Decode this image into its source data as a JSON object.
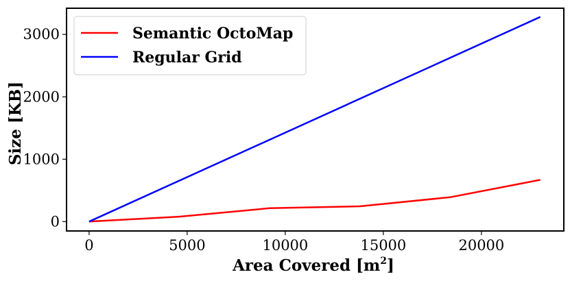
{
  "chart_data": {
    "type": "line",
    "title": "",
    "xlabel": "Area Covered [m",
    "xlabel_superscript": "2",
    "xlabel_suffix": "]",
    "ylabel": "Size [KB]",
    "xlim": [
      -1150,
      24200
    ],
    "ylim": [
      -150,
      3420
    ],
    "xticks": [
      0,
      5000,
      10000,
      15000,
      20000
    ],
    "xtick_labels": [
      "0",
      "5000",
      "10000",
      "15000",
      "20000"
    ],
    "yticks": [
      0,
      1000,
      2000,
      3000
    ],
    "ytick_labels": [
      "0",
      "1000",
      "2000",
      "3000"
    ],
    "grid": false,
    "legend_position": "top-left",
    "series": [
      {
        "name": "Semantic OctoMap",
        "color": "#ff0000",
        "x": [
          0,
          4600,
          9200,
          13800,
          18400,
          23000
        ],
        "y": [
          0,
          80,
          215,
          245,
          390,
          670
        ]
      },
      {
        "name": "Regular Grid",
        "color": "#0000ff",
        "x": [
          0,
          23000
        ],
        "y": [
          0,
          3280
        ]
      }
    ]
  }
}
